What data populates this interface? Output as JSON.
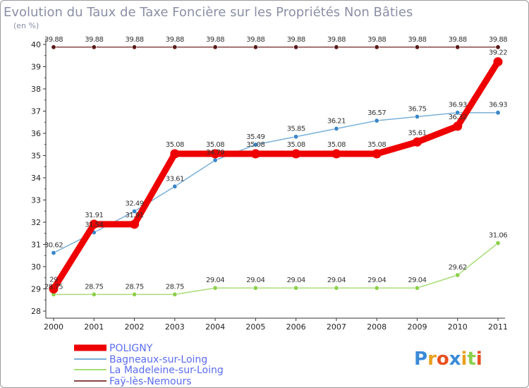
{
  "chart_data": {
    "type": "line",
    "title": "Evolution du Taux de Taxe Foncière sur les Propriétés Non Bâties",
    "ylabel": "(en %)",
    "xlabel": "",
    "x": [
      2000,
      2001,
      2002,
      2003,
      2004,
      2005,
      2006,
      2007,
      2008,
      2009,
      2010,
      2011
    ],
    "ylim": [
      28,
      40
    ],
    "yticks": [
      28,
      29,
      30,
      31,
      32,
      33,
      34,
      35,
      36,
      37,
      38,
      39,
      40
    ],
    "grid": false,
    "legend_position": "bottom-left",
    "series": [
      {
        "name": "POLIGNY",
        "color": "#ee0000",
        "values": [
          29.0,
          31.91,
          31.91,
          35.08,
          35.08,
          35.08,
          35.08,
          35.08,
          35.08,
          35.61,
          36.32,
          39.22
        ],
        "labels": [
          "29",
          "31.91",
          "31.91",
          "35.08",
          "35.08",
          "35.08",
          "35.08",
          "35.08",
          "35.08",
          "35.61",
          "36.32",
          "39.22"
        ]
      },
      {
        "name": "Bagneaux-sur-Loing",
        "color": "#7ab0d8",
        "marker_color": "#3a86c8",
        "values": [
          30.62,
          31.54,
          32.49,
          33.61,
          34.79,
          35.49,
          35.85,
          36.21,
          36.57,
          36.75,
          36.93,
          36.93
        ],
        "labels": [
          "30.62",
          "31.54",
          "32.49",
          "33.61",
          "34.79",
          "35.49",
          "35.85",
          "36.21",
          "36.57",
          "36.75",
          "36.93",
          "36.93"
        ]
      },
      {
        "name": "La Madeleine-sur-Loing",
        "color": "#a8dc78",
        "marker_color": "#8cd04a",
        "values": [
          28.75,
          28.75,
          28.75,
          28.75,
          29.04,
          29.04,
          29.04,
          29.04,
          29.04,
          29.04,
          29.62,
          31.06
        ],
        "labels": [
          "28.75",
          "28.75",
          "28.75",
          "28.75",
          "29.04",
          "29.04",
          "29.04",
          "29.04",
          "29.04",
          "29.04",
          "29.62",
          "31.06"
        ]
      },
      {
        "name": "Faÿ-lès-Nemours",
        "color": "#8a4444",
        "marker_color": "#5a1a1a",
        "values": [
          39.88,
          39.88,
          39.88,
          39.88,
          39.88,
          39.88,
          39.88,
          39.88,
          39.88,
          39.88,
          39.88,
          39.88
        ],
        "labels": [
          "39.88",
          "39.88",
          "39.88",
          "39.88",
          "39.88",
          "39.88",
          "39.88",
          "39.88",
          "39.88",
          "39.88",
          "39.88",
          "39.88"
        ]
      }
    ]
  },
  "logo": {
    "text": "Proxiti",
    "letter_colors": [
      "#3a8ad8",
      "#e8a020",
      "#e85020",
      "#3a8ad8",
      "#e8a020",
      "#8cd04a",
      "#e85020"
    ]
  }
}
